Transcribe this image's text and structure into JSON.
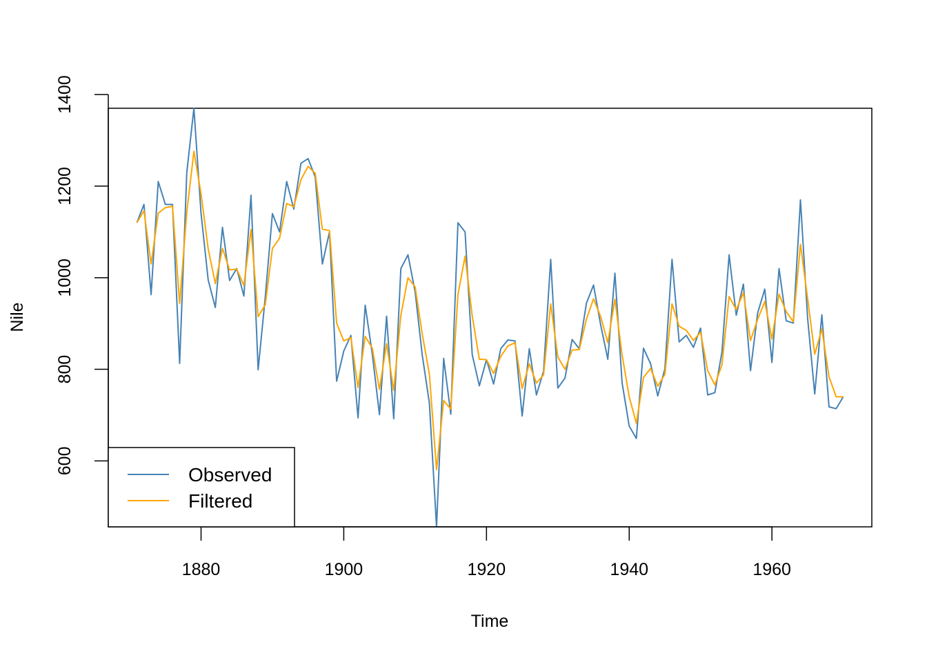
{
  "chart_data": {
    "type": "line",
    "title": "",
    "xlabel": "Time",
    "ylabel": "Nile",
    "xlim": [
      1867,
      1974
    ],
    "ylim": [
      456,
      1370
    ],
    "x_ticks": [
      1880,
      1900,
      1920,
      1940,
      1960
    ],
    "y_ticks": [
      600,
      800,
      1000,
      1200,
      1400
    ],
    "grid": false,
    "legend_position": "bottom-left",
    "x": [
      1871,
      1872,
      1873,
      1874,
      1875,
      1876,
      1877,
      1878,
      1879,
      1880,
      1881,
      1882,
      1883,
      1884,
      1885,
      1886,
      1887,
      1888,
      1889,
      1890,
      1891,
      1892,
      1893,
      1894,
      1895,
      1896,
      1897,
      1898,
      1899,
      1900,
      1901,
      1902,
      1903,
      1904,
      1905,
      1906,
      1907,
      1908,
      1909,
      1910,
      1911,
      1912,
      1913,
      1914,
      1915,
      1916,
      1917,
      1918,
      1919,
      1920,
      1921,
      1922,
      1923,
      1924,
      1925,
      1926,
      1927,
      1928,
      1929,
      1930,
      1931,
      1932,
      1933,
      1934,
      1935,
      1936,
      1937,
      1938,
      1939,
      1940,
      1941,
      1942,
      1943,
      1944,
      1945,
      1946,
      1947,
      1948,
      1949,
      1950,
      1951,
      1952,
      1953,
      1954,
      1955,
      1956,
      1957,
      1958,
      1959,
      1960,
      1961,
      1962,
      1963,
      1964,
      1965,
      1966,
      1967,
      1968,
      1969,
      1970
    ],
    "series": [
      {
        "name": "Observed",
        "color": "#4682b4",
        "values": [
          1120,
          1160,
          963,
          1210,
          1160,
          1160,
          813,
          1230,
          1370,
          1140,
          995,
          935,
          1110,
          994,
          1020,
          960,
          1180,
          799,
          958,
          1140,
          1100,
          1210,
          1150,
          1250,
          1260,
          1220,
          1030,
          1100,
          774,
          840,
          874,
          694,
          940,
          833,
          701,
          916,
          692,
          1020,
          1050,
          969,
          831,
          726,
          456,
          824,
          702,
          1120,
          1100,
          832,
          764,
          821,
          768,
          845,
          864,
          862,
          698,
          845,
          744,
          796,
          1040,
          759,
          781,
          865,
          845,
          944,
          984,
          897,
          822,
          1010,
          771,
          676,
          649,
          846,
          812,
          742,
          801,
          1040,
          860,
          874,
          848,
          890,
          744,
          749,
          838,
          1050,
          918,
          986,
          797,
          923,
          975,
          815,
          1020,
          906,
          901,
          1170,
          912,
          746,
          919,
          718,
          714,
          740
        ]
      },
      {
        "name": "Filtered",
        "color": "#ffa500",
        "values": [
          1120,
          1146,
          1030,
          1141,
          1153,
          1156,
          944,
          1143,
          1276,
          1183,
          1063,
          987,
          1064,
          1017,
          1019,
          983,
          1105,
          915,
          941,
          1064,
          1086,
          1162,
          1155,
          1214,
          1243,
          1228,
          1106,
          1103,
          901,
          862,
          869,
          760,
          872,
          846,
          756,
          856,
          754,
          918,
          1000,
          980,
          877,
          789,
          581,
          732,
          713,
          963,
          1047,
          917,
          822,
          821,
          791,
          828,
          851,
          858,
          758,
          812,
          770,
          788,
          943,
          827,
          800,
          842,
          843,
          909,
          954,
          915,
          858,
          953,
          832,
          740,
          682,
          782,
          802,
          763,
          789,
          943,
          894,
          885,
          863,
          881,
          797,
          766,
          810,
          959,
          930,
          967,
          863,
          909,
          948,
          866,
          964,
          926,
          904,
          1073,
          955,
          833,
          888,
          784,
          740,
          740
        ]
      }
    ]
  }
}
